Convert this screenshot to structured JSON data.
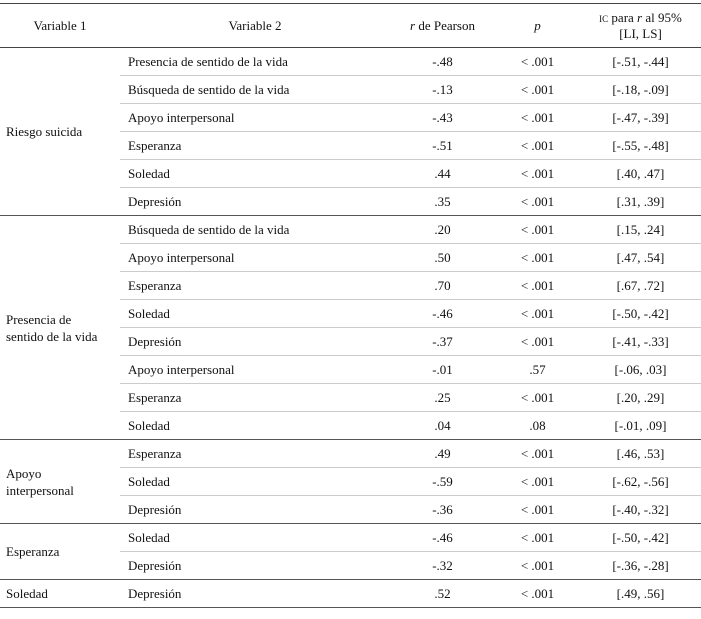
{
  "header": {
    "variable1": "Variable 1",
    "variable2": "Variable 2",
    "r_symbol": "r",
    "r_text": "de Pearson",
    "p": "p",
    "ci_prefix": "IC",
    "ci_mid": "para",
    "ci_r": "r",
    "ci_suffix": "al 95%",
    "ci_line2": "[LI, LS]"
  },
  "groups": [
    {
      "variable1": "Riesgo suicida",
      "rows": [
        [
          "Presencia de sentido de la vida",
          "-.48",
          "< .001",
          "[-.51, -.44]"
        ],
        [
          "Búsqueda de sentido de la vida",
          "-.13",
          "< .001",
          "[-.18, -.09]"
        ],
        [
          "Apoyo interpersonal",
          "-.43",
          "< .001",
          "[-.47, -.39]"
        ],
        [
          "Esperanza",
          "-.51",
          "< .001",
          "[-.55, -.48]"
        ],
        [
          "Soledad",
          ".44",
          "< .001",
          "[.40, .47]"
        ],
        [
          "Depresión",
          ".35",
          "< .001",
          "[.31, .39]"
        ]
      ]
    },
    {
      "variable1": "Presencia de sentido de la vida",
      "rows": [
        [
          "Búsqueda de sentido de la vida",
          ".20",
          "< .001",
          "[.15, .24]"
        ],
        [
          "Apoyo interpersonal",
          ".50",
          "< .001",
          "[.47, .54]"
        ],
        [
          "Esperanza",
          ".70",
          "< .001",
          "[.67, .72]"
        ],
        [
          "Soledad",
          "-.46",
          "< .001",
          "[-.50, -.42]"
        ],
        [
          "Depresión",
          "-.37",
          "< .001",
          "[-.41, -.33]"
        ],
        [
          "Apoyo interpersonal",
          "-.01",
          ".57",
          "[-.06, .03]"
        ],
        [
          "Esperanza",
          ".25",
          "< .001",
          "[.20, .29]"
        ],
        [
          "Soledad",
          ".04",
          ".08",
          "[-.01, .09]"
        ]
      ]
    },
    {
      "variable1": "Apoyo interpersonal",
      "rows": [
        [
          "Esperanza",
          ".49",
          "< .001",
          "[.46, .53]"
        ],
        [
          "Soledad",
          "-.59",
          "< .001",
          "[-.62, -.56]"
        ],
        [
          "Depresión",
          "-.36",
          "< .001",
          "[-.40, -.32]"
        ]
      ]
    },
    {
      "variable1": "Esperanza",
      "rows": [
        [
          "Soledad",
          "-.46",
          "< .001",
          "[-.50, -.42]"
        ],
        [
          "Depresión",
          "-.32",
          "< .001",
          "[-.36, -.28]"
        ]
      ]
    },
    {
      "variable1": "Soledad",
      "rows": [
        [
          "Depresión",
          ".52",
          "< .001",
          "[.49, .56]"
        ]
      ]
    }
  ]
}
